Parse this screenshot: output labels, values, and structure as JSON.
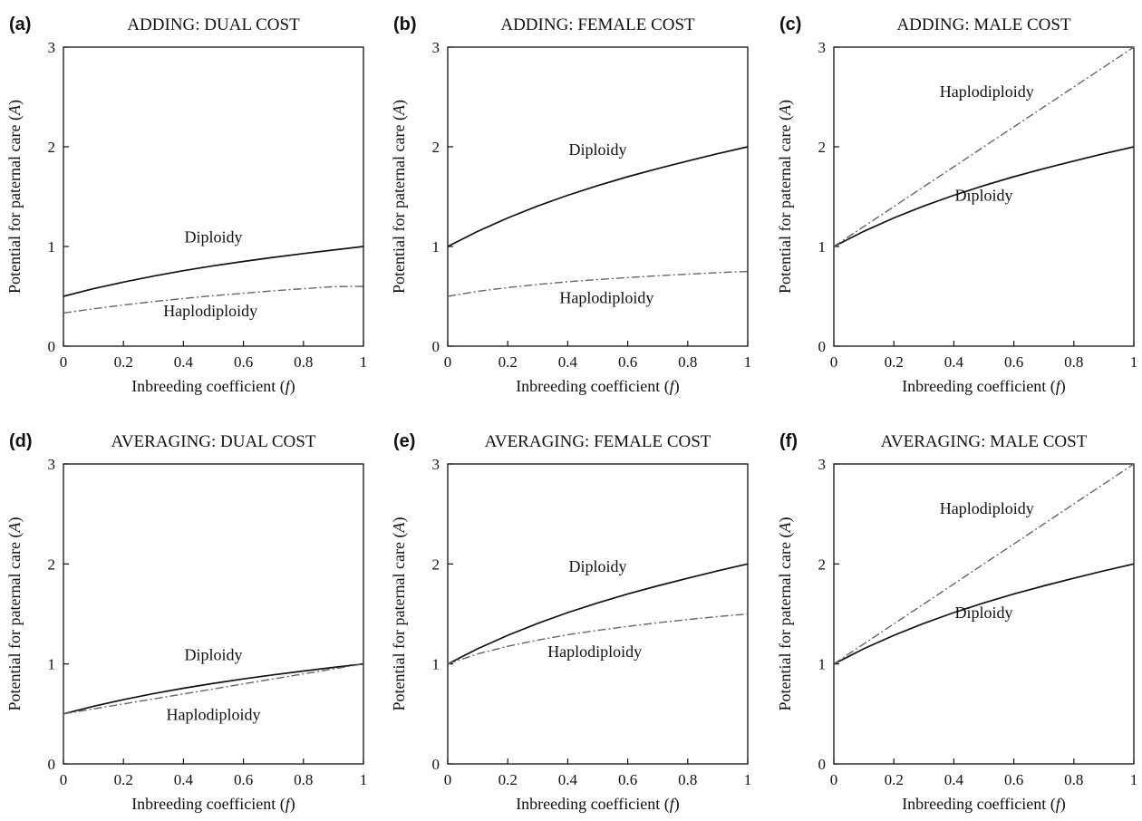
{
  "chart_data": [
    {
      "panel": "(a)",
      "title": "ADDING: DUAL COST",
      "type": "line",
      "xlabel": "Inbreeding coefficient (f)",
      "ylabel": "Potential for paternal care (A)",
      "xlim": [
        0,
        1
      ],
      "ylim": [
        0,
        3
      ],
      "xticks": [
        "0",
        "0.2",
        "0.4",
        "0.6",
        "0.8",
        "1"
      ],
      "yticks": [
        "0",
        "1",
        "2",
        "3"
      ],
      "x": [
        0,
        0.1,
        0.2,
        0.3,
        0.4,
        0.5,
        0.6,
        0.7,
        0.8,
        0.9,
        1
      ],
      "series": [
        {
          "name": "Diploidy",
          "style": "solid",
          "values": [
            0.5,
            0.576,
            0.643,
            0.703,
            0.757,
            0.806,
            0.85,
            0.891,
            0.929,
            0.965,
            1.0
          ]
        },
        {
          "name": "Haplodiploidy",
          "style": "dashdot",
          "values": [
            0.333,
            0.375,
            0.413,
            0.447,
            0.478,
            0.506,
            0.531,
            0.555,
            0.576,
            0.597,
            0.6
          ]
        }
      ],
      "annotations": [
        {
          "text": "Diploidy",
          "x": 0.5,
          "y": 1.04
        },
        {
          "text": "Haplodiploidy",
          "x": 0.49,
          "y": 0.3
        }
      ]
    },
    {
      "panel": "(b)",
      "title": "ADDING: FEMALE COST",
      "type": "line",
      "xlabel": "Inbreeding coefficient (f)",
      "ylabel": "Potential for paternal care (A)",
      "xlim": [
        0,
        1
      ],
      "ylim": [
        0,
        3
      ],
      "xticks": [
        "0",
        "0.2",
        "0.4",
        "0.6",
        "0.8",
        "1"
      ],
      "yticks": [
        "0",
        "1",
        "2",
        "3"
      ],
      "x": [
        0,
        0.1,
        0.2,
        0.3,
        0.4,
        0.5,
        0.6,
        0.7,
        0.8,
        0.9,
        1
      ],
      "series": [
        {
          "name": "Diploidy",
          "style": "solid",
          "values": [
            1.0,
            1.152,
            1.286,
            1.406,
            1.514,
            1.611,
            1.7,
            1.781,
            1.857,
            1.931,
            2.0
          ]
        },
        {
          "name": "Haplodiploidy",
          "style": "dashdot",
          "values": [
            0.5,
            0.55,
            0.588,
            0.619,
            0.646,
            0.668,
            0.688,
            0.706,
            0.722,
            0.737,
            0.75
          ]
        }
      ],
      "annotations": [
        {
          "text": "Diploidy",
          "x": 0.5,
          "y": 1.92
        },
        {
          "text": "Haplodiploidy",
          "x": 0.53,
          "y": 0.43
        }
      ]
    },
    {
      "panel": "(c)",
      "title": "ADDING: MALE COST",
      "type": "line",
      "xlabel": "Inbreeding coefficient (f)",
      "ylabel": "Potential for paternal care (A)",
      "xlim": [
        0,
        1
      ],
      "ylim": [
        0,
        3
      ],
      "xticks": [
        "0",
        "0.2",
        "0.4",
        "0.6",
        "0.8",
        "1"
      ],
      "yticks": [
        "0",
        "1",
        "2",
        "3"
      ],
      "x": [
        0,
        0.1,
        0.2,
        0.3,
        0.4,
        0.5,
        0.6,
        0.7,
        0.8,
        0.9,
        1
      ],
      "series": [
        {
          "name": "Diploidy",
          "style": "solid",
          "values": [
            1.0,
            1.152,
            1.286,
            1.406,
            1.514,
            1.611,
            1.7,
            1.781,
            1.857,
            1.931,
            2.0
          ]
        },
        {
          "name": "Haplodiploidy",
          "style": "dashdot",
          "values": [
            1.0,
            1.2,
            1.4,
            1.6,
            1.8,
            2.0,
            2.2,
            2.4,
            2.6,
            2.8,
            3.0
          ]
        }
      ],
      "annotations": [
        {
          "text": "Haplodiploidy",
          "x": 0.51,
          "y": 2.5
        },
        {
          "text": "Diploidy",
          "x": 0.5,
          "y": 1.46
        }
      ]
    },
    {
      "panel": "(d)",
      "title": "AVERAGING: DUAL COST",
      "type": "line",
      "xlabel": "Inbreeding coefficient (f)",
      "ylabel": "Potential for paternal care (A)",
      "xlim": [
        0,
        1
      ],
      "ylim": [
        0,
        3
      ],
      "xticks": [
        "0",
        "0.2",
        "0.4",
        "0.6",
        "0.8",
        "1"
      ],
      "yticks": [
        "0",
        "1",
        "2",
        "3"
      ],
      "x": [
        0,
        0.1,
        0.2,
        0.3,
        0.4,
        0.5,
        0.6,
        0.7,
        0.8,
        0.9,
        1
      ],
      "series": [
        {
          "name": "Diploidy",
          "style": "solid",
          "values": [
            0.5,
            0.576,
            0.643,
            0.703,
            0.757,
            0.806,
            0.85,
            0.891,
            0.929,
            0.965,
            1.0
          ]
        },
        {
          "name": "Haplodiploidy",
          "style": "dashdot",
          "values": [
            0.5,
            0.55,
            0.6,
            0.65,
            0.7,
            0.75,
            0.8,
            0.85,
            0.9,
            0.95,
            1.0
          ]
        }
      ],
      "annotations": [
        {
          "text": "Diploidy",
          "x": 0.5,
          "y": 1.04
        },
        {
          "text": "Haplodiploidy",
          "x": 0.5,
          "y": 0.44
        }
      ]
    },
    {
      "panel": "(e)",
      "title": "AVERAGING: FEMALE COST",
      "type": "line",
      "xlabel": "Inbreeding coefficient (f)",
      "ylabel": "Potential for paternal care (A)",
      "xlim": [
        0,
        1
      ],
      "ylim": [
        0,
        3
      ],
      "xticks": [
        "0",
        "0.2",
        "0.4",
        "0.6",
        "0.8",
        "1"
      ],
      "yticks": [
        "0",
        "1",
        "2",
        "3"
      ],
      "x": [
        0,
        0.1,
        0.2,
        0.3,
        0.4,
        0.5,
        0.6,
        0.7,
        0.8,
        0.9,
        1
      ],
      "series": [
        {
          "name": "Diploidy",
          "style": "solid",
          "values": [
            1.0,
            1.152,
            1.286,
            1.406,
            1.514,
            1.611,
            1.7,
            1.781,
            1.857,
            1.931,
            2.0
          ]
        },
        {
          "name": "Haplodiploidy",
          "style": "dashdot",
          "values": [
            1.0,
            1.1,
            1.176,
            1.238,
            1.292,
            1.336,
            1.375,
            1.412,
            1.444,
            1.474,
            1.5
          ]
        }
      ],
      "annotations": [
        {
          "text": "Diploidy",
          "x": 0.5,
          "y": 1.92
        },
        {
          "text": "Haplodiploidy",
          "x": 0.49,
          "y": 1.07
        }
      ]
    },
    {
      "panel": "(f)",
      "title": "AVERAGING: MALE COST",
      "type": "line",
      "xlabel": "Inbreeding coefficient (f)",
      "ylabel": "Potential for paternal care (A)",
      "xlim": [
        0,
        1
      ],
      "ylim": [
        0,
        3
      ],
      "xticks": [
        "0",
        "0.2",
        "0.4",
        "0.6",
        "0.8",
        "1"
      ],
      "yticks": [
        "0",
        "1",
        "2",
        "3"
      ],
      "x": [
        0,
        0.1,
        0.2,
        0.3,
        0.4,
        0.5,
        0.6,
        0.7,
        0.8,
        0.9,
        1
      ],
      "series": [
        {
          "name": "Diploidy",
          "style": "solid",
          "values": [
            1.0,
            1.152,
            1.286,
            1.406,
            1.514,
            1.611,
            1.7,
            1.781,
            1.857,
            1.931,
            2.0
          ]
        },
        {
          "name": "Haplodiploidy",
          "style": "dashdot",
          "values": [
            1.0,
            1.2,
            1.4,
            1.6,
            1.8,
            2.0,
            2.2,
            2.4,
            2.6,
            2.8,
            3.0
          ]
        }
      ],
      "annotations": [
        {
          "text": "Haplodiploidy",
          "x": 0.51,
          "y": 2.5
        },
        {
          "text": "Diploidy",
          "x": 0.5,
          "y": 1.46
        }
      ]
    }
  ]
}
